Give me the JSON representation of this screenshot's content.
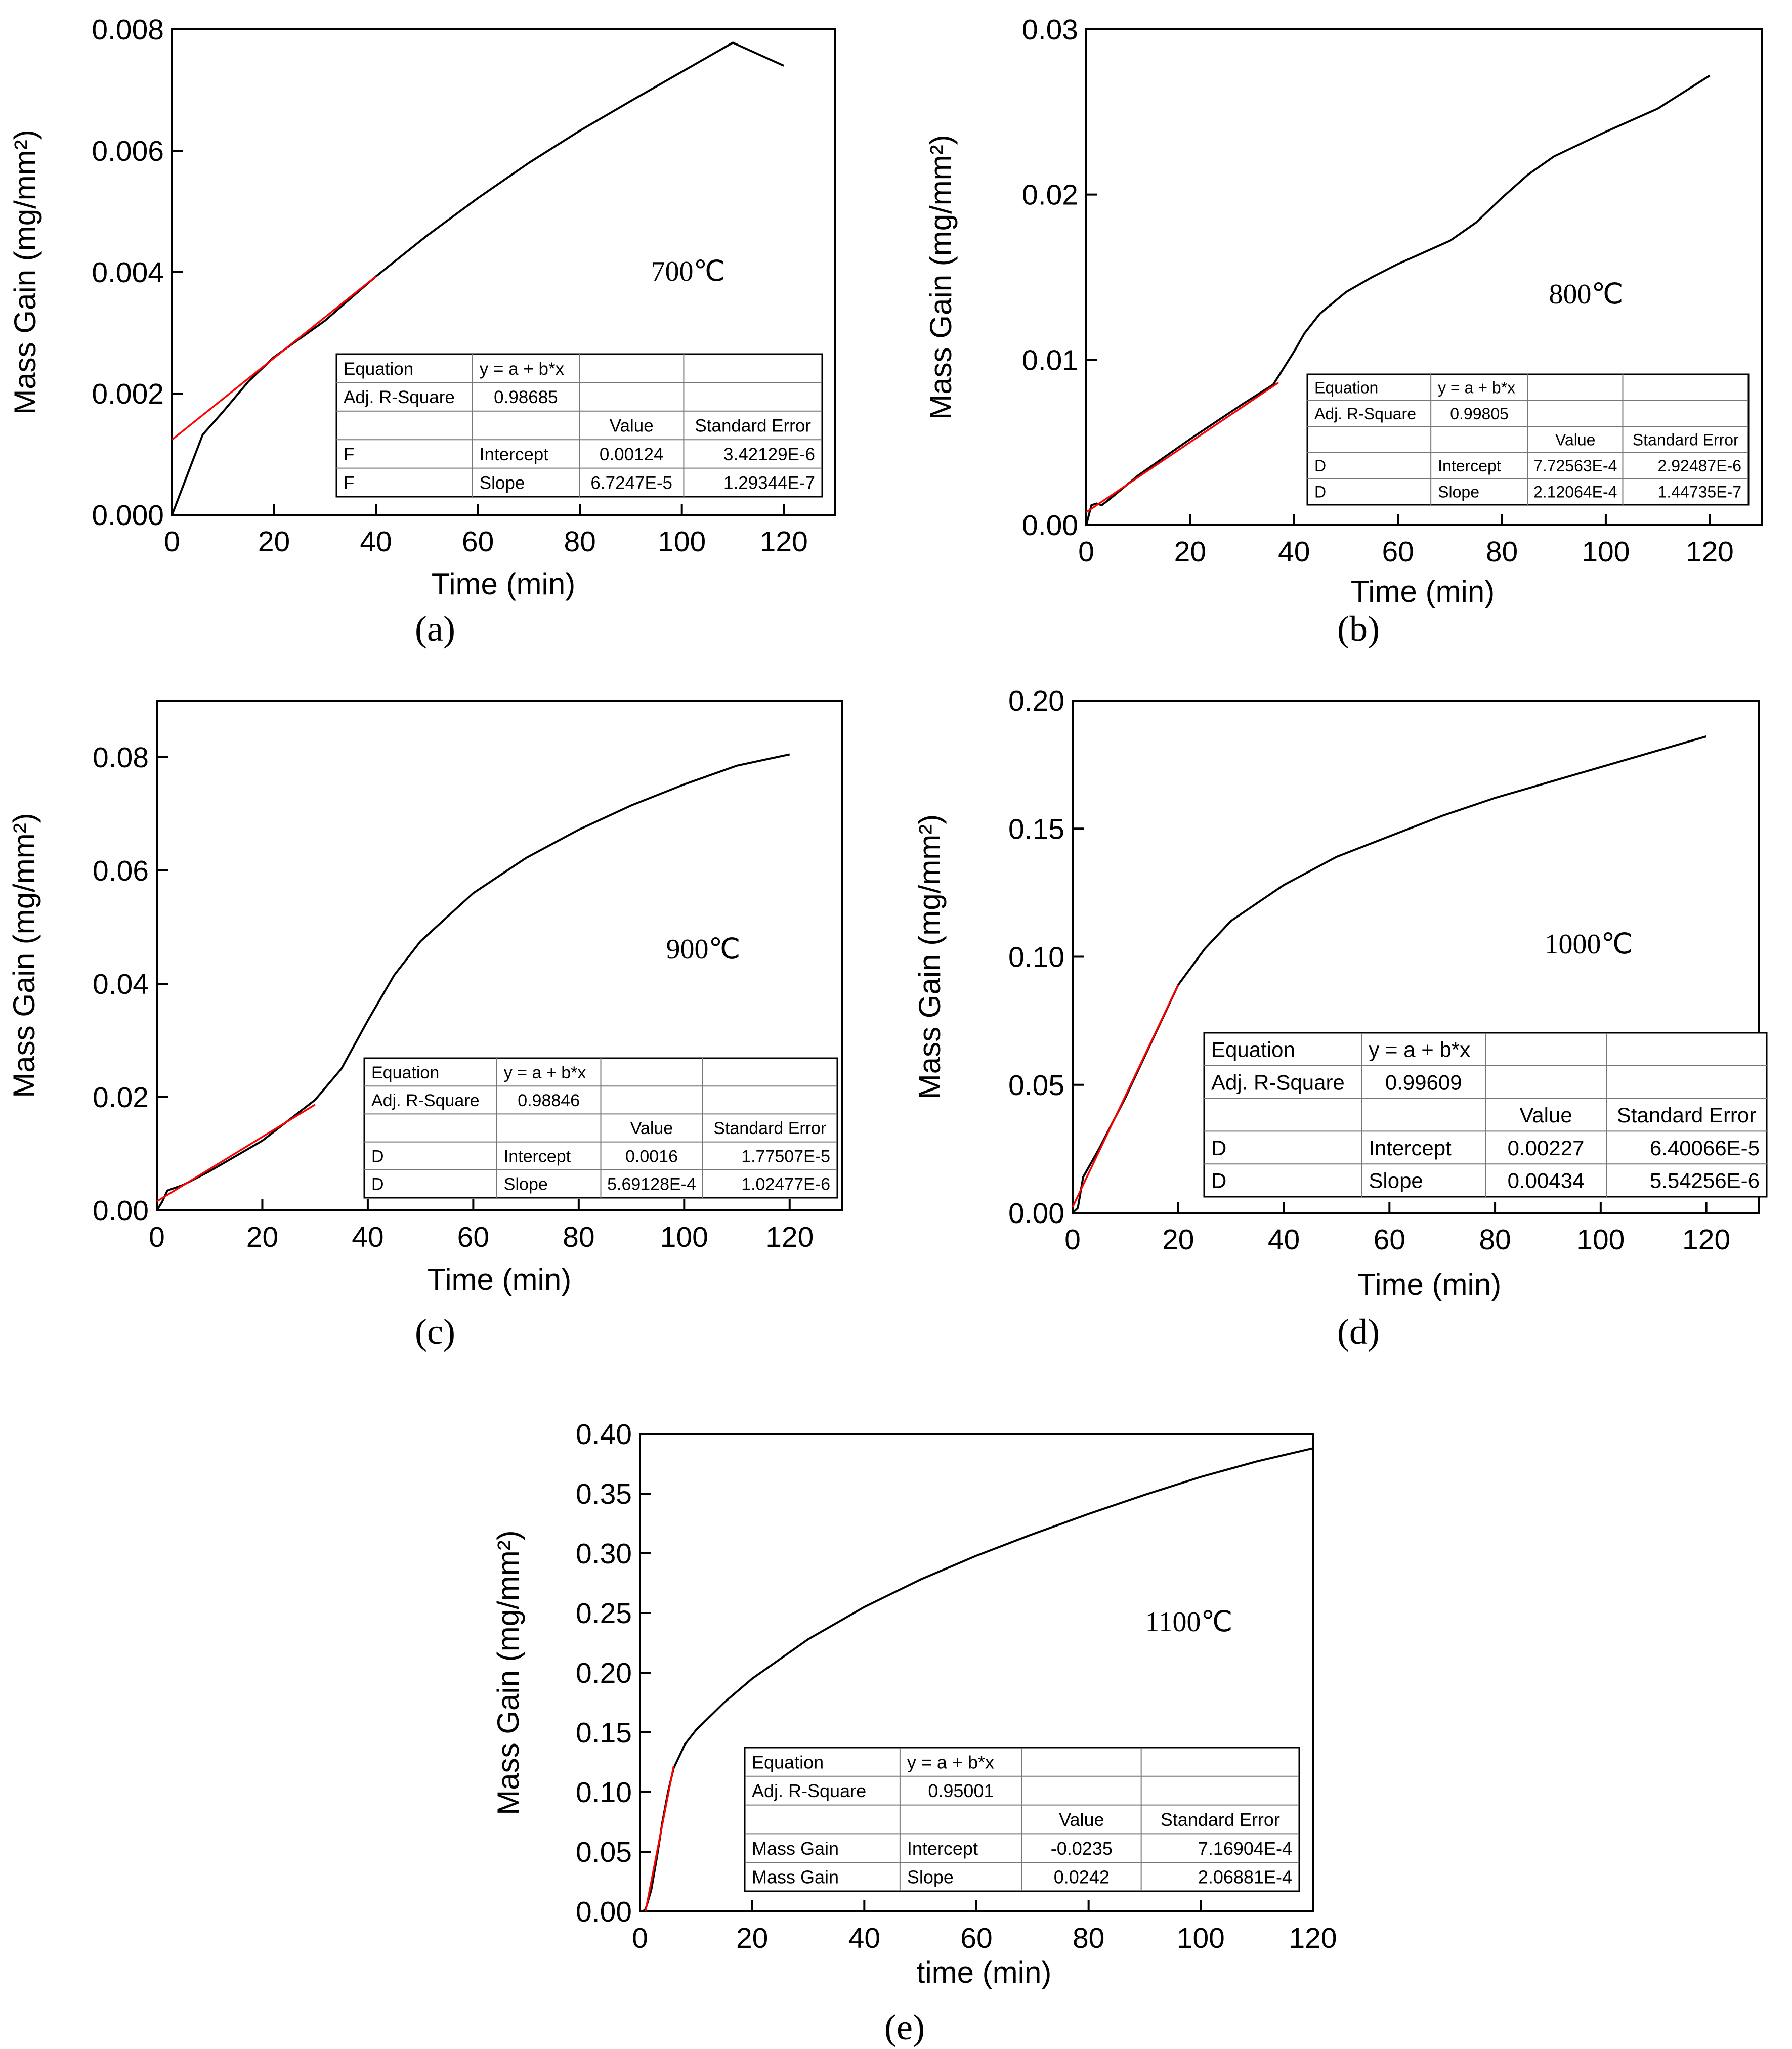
{
  "chart_data": [
    {
      "type": "line",
      "panel_label": "(a)",
      "temperature_label": "700℃",
      "xlabel": "Time (min)",
      "ylabel": "Mass Gain (mg/mm²)",
      "xlim": [
        0,
        130
      ],
      "ylim": [
        0,
        0.008
      ],
      "x_ticks": [
        0,
        20,
        40,
        60,
        80,
        100,
        120
      ],
      "y_ticks": [
        0,
        0.002,
        0.004,
        0.006,
        0.008
      ],
      "y_tick_labels": [
        "0.000",
        "0.002",
        "0.004",
        "0.006",
        "0.008"
      ],
      "series": [
        {
          "name": "Mass Gain",
          "color": "#000000",
          "x": [
            0,
            6,
            10,
            15,
            20,
            30,
            40,
            50,
            60,
            70,
            80,
            90,
            100,
            110,
            120
          ],
          "values": [
            0,
            0.00132,
            0.0017,
            0.0022,
            0.0026,
            0.0032,
            0.00393,
            0.0046,
            0.00522,
            0.0058,
            0.00633,
            0.00682,
            0.0073,
            0.00778,
            0.0074
          ]
        },
        {
          "name": "Linear Fit",
          "color": "#ff0000",
          "x": [
            0,
            40
          ],
          "values": [
            0.00124,
            0.00393
          ]
        }
      ],
      "fit_table": {
        "equation_label": "Equation",
        "equation": "y = a + b*x",
        "adj_r_label": "Adj. R-Square",
        "adj_r": "0.98685",
        "value_header": "Value",
        "se_header": "Standard Error",
        "rows": [
          {
            "dataset": "F",
            "param": "Intercept",
            "value": "0.00124",
            "se": "3.42129E-6"
          },
          {
            "dataset": "F",
            "param": "Slope",
            "value": "6.7247E-5",
            "se": "1.29344E-7"
          }
        ]
      }
    },
    {
      "type": "line",
      "panel_label": "(b)",
      "temperature_label": "800℃",
      "xlabel": "Time (min)",
      "ylabel": "Mass Gain (mg/mm²)",
      "xlim": [
        0,
        130
      ],
      "ylim": [
        0,
        0.03
      ],
      "x_ticks": [
        0,
        20,
        40,
        60,
        80,
        100,
        120
      ],
      "y_ticks": [
        0,
        0.01,
        0.02,
        0.03
      ],
      "y_tick_labels": [
        "0.00",
        "0.01",
        "0.02",
        "0.03"
      ],
      "series": [
        {
          "name": "Mass Gain",
          "color": "#000000",
          "x": [
            0,
            1,
            2,
            3,
            5,
            10,
            20,
            30,
            36,
            40,
            42,
            45,
            50,
            55,
            60,
            65,
            70,
            75,
            80,
            85,
            90,
            100,
            110,
            120
          ],
          "values": [
            0,
            0.0012,
            0.0013,
            0.0012,
            0.0017,
            0.003,
            0.0052,
            0.0073,
            0.0085,
            0.0105,
            0.0116,
            0.0128,
            0.0141,
            0.015,
            0.0158,
            0.0165,
            0.0172,
            0.0183,
            0.0198,
            0.0212,
            0.0223,
            0.0238,
            0.0252,
            0.0272
          ]
        },
        {
          "name": "Linear Fit",
          "color": "#ff0000",
          "x": [
            0,
            37
          ],
          "values": [
            0.000773,
            0.008619
          ]
        }
      ],
      "fit_table": {
        "equation_label": "Equation",
        "equation": "y = a + b*x",
        "adj_r_label": "Adj. R-Square",
        "adj_r": "0.99805",
        "value_header": "Value",
        "se_header": "Standard Error",
        "rows": [
          {
            "dataset": "D",
            "param": "Intercept",
            "value": "7.72563E-4",
            "se": "2.92487E-6"
          },
          {
            "dataset": "D",
            "param": "Slope",
            "value": "2.12064E-4",
            "se": "1.44735E-7"
          }
        ]
      }
    },
    {
      "type": "line",
      "panel_label": "(c)",
      "temperature_label": "900℃",
      "xlabel": "Time (min)",
      "ylabel": "Mass Gain (mg/mm²)",
      "xlim": [
        0,
        130
      ],
      "ylim": [
        0,
        0.09
      ],
      "x_ticks": [
        0,
        20,
        40,
        60,
        80,
        100,
        120
      ],
      "y_ticks": [
        0,
        0.02,
        0.04,
        0.06,
        0.08
      ],
      "y_tick_labels": [
        "0.00",
        "0.02",
        "0.04",
        "0.06",
        "0.08"
      ],
      "series": [
        {
          "name": "Mass Gain",
          "color": "#000000",
          "x": [
            0,
            1,
            2,
            5,
            10,
            20,
            30,
            35,
            40,
            45,
            50,
            60,
            70,
            80,
            90,
            100,
            110,
            120
          ],
          "values": [
            0,
            0.0015,
            0.0035,
            0.0045,
            0.0069,
            0.0123,
            0.0195,
            0.025,
            0.0335,
            0.0415,
            0.0475,
            0.056,
            0.0622,
            0.0672,
            0.0715,
            0.0752,
            0.0785,
            0.0805
          ]
        },
        {
          "name": "Linear Fit",
          "color": "#ff0000",
          "x": [
            0,
            30
          ],
          "values": [
            0.0016,
            0.018674
          ]
        }
      ],
      "fit_table": {
        "equation_label": "Equation",
        "equation": "y = a + b*x",
        "adj_r_label": "Adj. R-Square",
        "adj_r": "0.98846",
        "value_header": "Value",
        "se_header": "Standard Error",
        "rows": [
          {
            "dataset": "D",
            "param": "Intercept",
            "value": "0.0016",
            "se": "1.77507E-5"
          },
          {
            "dataset": "D",
            "param": "Slope",
            "value": "5.69128E-4",
            "se": "1.02477E-6"
          }
        ]
      }
    },
    {
      "type": "line",
      "panel_label": "(d)",
      "temperature_label": "1000℃",
      "xlabel": "Time (min)",
      "ylabel": "Mass Gain (mg/mm²)",
      "xlim": [
        0,
        130
      ],
      "ylim": [
        0,
        0.2
      ],
      "x_ticks": [
        0,
        20,
        40,
        60,
        80,
        100,
        120
      ],
      "y_ticks": [
        0,
        0.05,
        0.1,
        0.15,
        0.2
      ],
      "y_tick_labels": [
        "0.00",
        "0.05",
        "0.10",
        "0.15",
        "0.20"
      ],
      "series": [
        {
          "name": "Mass Gain",
          "color": "#000000",
          "x": [
            0,
            1,
            2,
            5,
            10,
            15,
            20,
            25,
            30,
            40,
            50,
            60,
            70,
            80,
            90,
            100,
            110,
            120
          ],
          "values": [
            0,
            0.002,
            0.014,
            0.025,
            0.045,
            0.067,
            0.089,
            0.103,
            0.114,
            0.128,
            0.139,
            0.147,
            0.155,
            0.162,
            0.168,
            0.174,
            0.18,
            0.186
          ]
        },
        {
          "name": "Linear Fit",
          "color": "#ff0000",
          "x": [
            0,
            20
          ],
          "values": [
            0.00227,
            0.08907
          ]
        }
      ],
      "fit_table": {
        "equation_label": "Equation",
        "equation": "y = a + b*x",
        "adj_r_label": "Adj. R-Square",
        "adj_r": "0.99609",
        "value_header": "Value",
        "se_header": "Standard Error",
        "rows": [
          {
            "dataset": "D",
            "param": "Intercept",
            "value": "0.00227",
            "se": "6.40066E-5"
          },
          {
            "dataset": "D",
            "param": "Slope",
            "value": "0.00434",
            "se": "5.54256E-6"
          }
        ]
      }
    },
    {
      "type": "line",
      "panel_label": "(e)",
      "temperature_label": "1100℃",
      "xlabel": "time (min)",
      "ylabel": "Mass Gain (mg/mm²)",
      "xlim": [
        0,
        120
      ],
      "ylim": [
        0,
        0.4
      ],
      "x_ticks": [
        0,
        20,
        40,
        60,
        80,
        100,
        120
      ],
      "y_ticks": [
        0,
        0.05,
        0.1,
        0.15,
        0.2,
        0.25,
        0.3,
        0.35,
        0.4
      ],
      "y_tick_labels": [
        "0.00",
        "0.05",
        "0.10",
        "0.15",
        "0.20",
        "0.25",
        "0.30",
        "0.35",
        "0.40"
      ],
      "series": [
        {
          "name": "Mass Gain",
          "color": "#000000",
          "x": [
            0,
            0.5,
            1,
            2,
            3,
            4,
            5,
            6,
            8,
            10,
            15,
            20,
            30,
            40,
            50,
            60,
            70,
            80,
            90,
            100,
            110,
            120
          ],
          "values": [
            0,
            0,
            0.002,
            0.018,
            0.045,
            0.075,
            0.1,
            0.12,
            0.14,
            0.152,
            0.175,
            0.195,
            0.228,
            0.255,
            0.278,
            0.298,
            0.316,
            0.333,
            0.349,
            0.364,
            0.377,
            0.388
          ]
        },
        {
          "name": "Linear Fit",
          "color": "#ff0000",
          "x": [
            0.97,
            6
          ],
          "values": [
            0,
            0.1217
          ]
        }
      ],
      "fit_table": {
        "equation_label": "Equation",
        "equation": "y = a + b*x",
        "adj_r_label": "Adj. R-Square",
        "adj_r": "0.95001",
        "value_header": "Value",
        "se_header": "Standard Error",
        "rows": [
          {
            "dataset": "Mass Gain",
            "param": "Intercept",
            "value": "-0.0235",
            "se": "7.16904E-4"
          },
          {
            "dataset": "Mass Gain",
            "param": "Slope",
            "value": "0.0242",
            "se": "2.06881E-4"
          }
        ]
      }
    }
  ]
}
